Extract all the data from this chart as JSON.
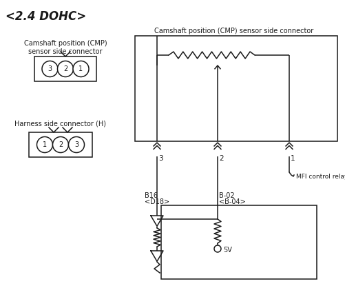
{
  "title": "<2.4 DOHC>",
  "bg_color": "#ffffff",
  "line_color": "#1a1a1a",
  "text_color": "#1a1a1a",
  "title_fontsize": 12,
  "label_fontsize": 7,
  "small_fontsize": 6.5,
  "cmp_label_top": "Camshaft position (CMP) sensor side connector",
  "cmp_label_left_line1": "Camshaft position (CMP)",
  "cmp_label_left_line2": "sensor side connector",
  "harness_label": "Harness side connector (H)",
  "mfi_label": "MFI control relay",
  "b16_label": "B16",
  "b02_label": "B-02",
  "d18_label": "<D18>",
  "b04_label": "<B-04>",
  "v5_label": "5V"
}
